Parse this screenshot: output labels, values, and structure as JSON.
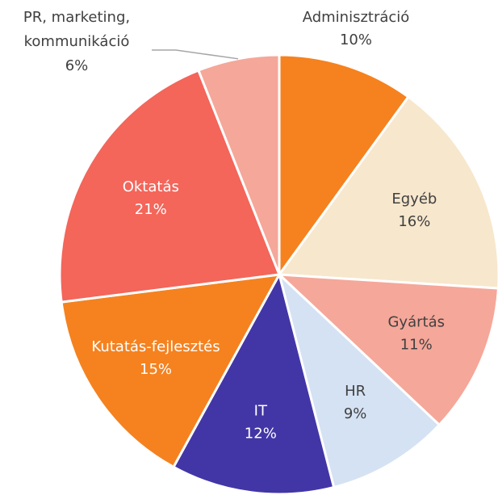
{
  "chart_data": {
    "type": "pie",
    "categories": [
      "Adminisztráció",
      "Egyéb",
      "Gyártás",
      "HR",
      "IT",
      "Kutatás-fejlesztés",
      "Oktatás",
      "PR, marketing, kommunikáció"
    ],
    "values": [
      10,
      16,
      11,
      9,
      12,
      15,
      21,
      6
    ],
    "value_labels": [
      "10%",
      "16%",
      "11%",
      "9%",
      "12%",
      "15%",
      "21%",
      "6%"
    ],
    "colors": [
      "#f5821f",
      "#f7e7cd",
      "#f5a799",
      "#d5e2f3",
      "#4236a6",
      "#f5821f",
      "#f4655a",
      "#f5a799"
    ],
    "label_colors": [
      "#404040",
      "#404040",
      "#404040",
      "#404040",
      "#ffffff",
      "#ffffff",
      "#ffffff",
      "#404040"
    ]
  }
}
